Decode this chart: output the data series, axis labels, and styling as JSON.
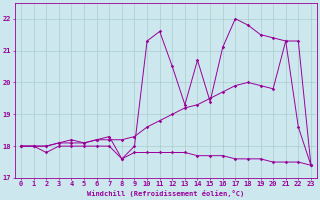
{
  "xlabel": "Windchill (Refroidissement éolien,°C)",
  "bg_color": "#cce8ee",
  "line_color": "#990099",
  "grid_color": "#aacccc",
  "xlim": [
    -0.5,
    23.5
  ],
  "ylim": [
    17.0,
    22.5
  ],
  "yticks": [
    17,
    18,
    19,
    20,
    21,
    22
  ],
  "xticks": [
    0,
    1,
    2,
    3,
    4,
    5,
    6,
    7,
    8,
    9,
    10,
    11,
    12,
    13,
    14,
    15,
    16,
    17,
    18,
    19,
    20,
    21,
    22,
    23
  ],
  "series": [
    {
      "x": [
        0,
        1,
        2,
        3,
        4,
        5,
        6,
        7,
        8,
        9,
        10,
        11,
        12,
        13,
        14,
        15,
        16,
        17,
        18,
        19,
        20,
        21,
        22,
        23
      ],
      "y": [
        18.0,
        18.0,
        17.8,
        18.0,
        18.0,
        18.0,
        18.0,
        18.0,
        17.6,
        17.8,
        17.8,
        17.8,
        17.8,
        17.8,
        17.7,
        17.7,
        17.7,
        17.6,
        17.6,
        17.6,
        17.5,
        17.5,
        17.5,
        17.4
      ]
    },
    {
      "x": [
        0,
        1,
        2,
        3,
        4,
        5,
        6,
        7,
        8,
        9,
        10,
        11,
        12,
        13,
        14,
        15,
        16,
        17,
        18,
        19,
        20,
        21,
        22,
        23
      ],
      "y": [
        18.0,
        18.0,
        18.0,
        18.1,
        18.1,
        18.1,
        18.2,
        18.2,
        18.2,
        18.3,
        18.6,
        18.8,
        19.0,
        19.2,
        19.3,
        19.5,
        19.7,
        19.9,
        20.0,
        19.9,
        19.8,
        21.3,
        21.3,
        17.4
      ]
    },
    {
      "x": [
        0,
        1,
        2,
        3,
        4,
        5,
        6,
        7,
        8,
        9,
        10,
        11,
        12,
        13,
        14,
        15,
        16,
        17,
        18,
        19,
        20,
        21,
        22,
        23
      ],
      "y": [
        18.0,
        18.0,
        18.0,
        18.1,
        18.2,
        18.1,
        18.2,
        18.3,
        17.6,
        18.0,
        21.3,
        21.6,
        20.5,
        19.3,
        20.7,
        19.4,
        21.1,
        22.0,
        21.8,
        21.5,
        21.4,
        21.3,
        18.6,
        17.4
      ]
    }
  ]
}
